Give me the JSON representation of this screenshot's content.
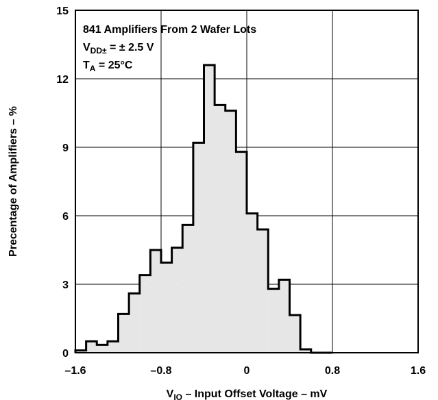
{
  "chart_data": {
    "type": "bar",
    "subtype": "histogram",
    "xlabel": {
      "prefix": "V",
      "sub": "IO",
      "rest": " – Input Offset Voltage – mV"
    },
    "ylabel": "Precentage of Amplifiers – %",
    "xlim": [
      -1.6,
      1.6
    ],
    "ylim": [
      0,
      15
    ],
    "xticks": [
      -1.6,
      -0.8,
      0,
      0.8,
      1.6
    ],
    "xtick_labels": [
      "–1.6",
      "–0.8",
      "0",
      "0.8",
      "1.6"
    ],
    "yticks": [
      0,
      3,
      6,
      9,
      12,
      15
    ],
    "ytick_labels": [
      "0",
      "3",
      "6",
      "9",
      "12",
      "15"
    ],
    "grid": true,
    "bin_width": 0.1,
    "bin_starts": [
      -1.6,
      -1.5,
      -1.4,
      -1.3,
      -1.2,
      -1.1,
      -1.0,
      -0.9,
      -0.8,
      -0.7,
      -0.6,
      -0.5,
      -0.4,
      -0.3,
      -0.2,
      -0.1,
      0.0,
      0.1,
      0.2,
      0.3,
      0.4,
      0.5,
      0.6,
      0.7
    ],
    "values": [
      0.1,
      0.5,
      0.35,
      0.5,
      1.7,
      2.6,
      3.4,
      4.5,
      3.95,
      4.6,
      5.6,
      9.2,
      12.6,
      10.85,
      10.6,
      8.8,
      6.1,
      5.4,
      2.8,
      3.2,
      1.65,
      0.15,
      0.0,
      0.0
    ],
    "fill_color": "#e6e6e6",
    "line_color": "#000000",
    "annotation": {
      "line1": "841 Amplifiers From 2 Wafer Lots",
      "line2": {
        "prefix": "V",
        "sub": "DD±",
        "rest": " = ± 2.5 V"
      },
      "line3": {
        "prefix": "T",
        "sub": "A",
        "rest": " = 25°C"
      }
    }
  }
}
